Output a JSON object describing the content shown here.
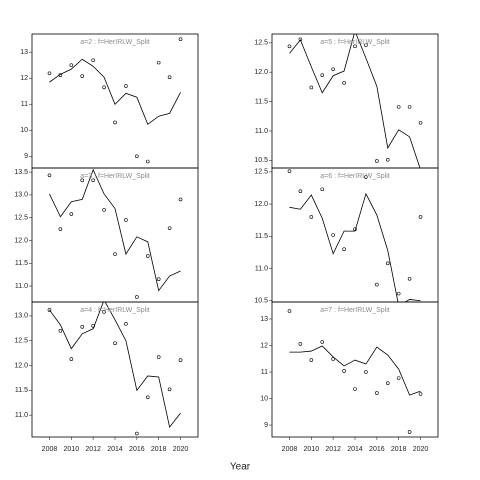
{
  "xlabel": "Year",
  "chart_data": [
    {
      "type": "scatter",
      "title": "a=2  :  f=HerIRLW_Split",
      "x": [
        2008,
        2009,
        2010,
        2011,
        2012,
        2013,
        2014,
        2015,
        2016,
        2017,
        2018,
        2019,
        2020
      ],
      "xlim": [
        2006.4,
        2021.6
      ],
      "ylim": [
        8.55,
        13.7
      ],
      "yticks": [
        9,
        10,
        11,
        12,
        13
      ],
      "series": [
        {
          "mark": "point",
          "color": "#000000",
          "values": [
            12.19,
            12.12,
            12.5,
            12.08,
            12.69,
            11.65,
            10.3,
            11.7,
            9.0,
            8.8,
            12.6,
            12.04,
            13.5
          ]
        },
        {
          "mark": "line",
          "color": "#000000",
          "values": [
            11.85,
            12.15,
            12.35,
            12.73,
            12.46,
            12.04,
            11.0,
            11.42,
            11.27,
            10.23,
            10.54,
            10.65,
            11.46
          ]
        }
      ]
    },
    {
      "type": "scatter",
      "title": "a=3  :  f=HerIRLW_Split",
      "x": [
        2008,
        2009,
        2010,
        2011,
        2012,
        2013,
        2014,
        2015,
        2016,
        2017,
        2018,
        2019,
        2020
      ],
      "xlim": [
        2006.4,
        2021.6
      ],
      "ylim": [
        10.65,
        13.59
      ],
      "yticks": [
        {
          "value": 11,
          "label": "11.0"
        },
        11.5,
        {
          "value": 12,
          "label": "12.0"
        },
        12.5,
        {
          "value": 13,
          "label": "13.0"
        },
        13.5
      ],
      "series": [
        {
          "mark": "point",
          "color": "#000000",
          "values": [
            13.43,
            12.25,
            12.58,
            13.32,
            13.32,
            12.67,
            11.7,
            12.45,
            10.76,
            11.66,
            11.15,
            12.27,
            12.9
          ]
        },
        {
          "mark": "line",
          "color": "#000000",
          "values": [
            13.02,
            12.52,
            12.85,
            12.9,
            13.55,
            13.02,
            12.7,
            11.7,
            12.08,
            11.97,
            10.9,
            11.22,
            11.33
          ]
        }
      ]
    },
    {
      "type": "scatter",
      "title": "a=4  :  f=HerIRLW_Split",
      "x": [
        2008,
        2009,
        2010,
        2011,
        2012,
        2013,
        2014,
        2015,
        2016,
        2017,
        2018,
        2019,
        2020
      ],
      "xlim": [
        2006.4,
        2021.6
      ],
      "ylim": [
        10.56,
        13.28
      ],
      "xticks": [
        2008,
        2010,
        2012,
        2014,
        2016,
        2018,
        2020
      ],
      "yticks": [
        {
          "value": 11,
          "label": "11.0"
        },
        11.5,
        {
          "value": 12,
          "label": "12.0"
        },
        12.5,
        {
          "value": 13,
          "label": "13.0"
        }
      ],
      "series": [
        {
          "mark": "point",
          "color": "#000000",
          "values": [
            13.12,
            12.7,
            12.13,
            12.78,
            12.8,
            13.08,
            12.45,
            12.84,
            10.63,
            11.36,
            12.17,
            11.52,
            12.11
          ]
        },
        {
          "mark": "line",
          "color": "#000000",
          "values": [
            13.12,
            12.82,
            12.34,
            12.64,
            12.74,
            13.32,
            12.92,
            12.5,
            11.5,
            11.79,
            11.77,
            10.76,
            11.04
          ]
        }
      ]
    },
    {
      "type": "scatter",
      "title": "a=5  :  f=HerIRLW_Split",
      "x": [
        2008,
        2009,
        2010,
        2011,
        2012,
        2013,
        2014,
        2015,
        2016,
        2017,
        2018,
        2019,
        2020
      ],
      "xlim": [
        2006.4,
        2021.6
      ],
      "ylim": [
        10.37,
        12.65
      ],
      "yticks": [
        10.5,
        {
          "value": 11,
          "label": "11.0"
        },
        11.5,
        {
          "value": 12,
          "label": "12.0"
        },
        12.5
      ],
      "series": [
        {
          "mark": "point",
          "color": "#000000",
          "values": [
            12.44,
            12.56,
            11.74,
            11.95,
            12.05,
            11.82,
            12.44,
            12.46,
            10.49,
            10.51,
            11.41,
            11.41,
            11.14
          ]
        },
        {
          "mark": "line",
          "color": "#000000",
          "values": [
            12.32,
            12.55,
            12.09,
            11.65,
            11.94,
            12.02,
            12.7,
            12.24,
            11.76,
            10.71,
            11.02,
            10.9,
            10.34
          ]
        }
      ]
    },
    {
      "type": "scatter",
      "title": "a=6  :  f=HerIRLW_Split",
      "x": [
        2008,
        2009,
        2010,
        2011,
        2012,
        2013,
        2014,
        2015,
        2016,
        2017,
        2018,
        2019,
        2020
      ],
      "xlim": [
        2006.4,
        2021.6
      ],
      "ylim": [
        10.48,
        12.56
      ],
      "yticks": [
        10.5,
        {
          "value": 11,
          "label": "11.0"
        },
        11.5,
        {
          "value": 12,
          "label": "12.0"
        },
        12.5
      ],
      "series": [
        {
          "mark": "point",
          "color": "#000000",
          "values": [
            12.51,
            12.2,
            11.8,
            12.23,
            11.52,
            11.3,
            11.61,
            12.42,
            10.75,
            11.08,
            10.61,
            10.84,
            11.8
          ]
        },
        {
          "mark": "line",
          "color": "#000000",
          "values": [
            11.95,
            11.92,
            12.14,
            11.78,
            11.23,
            11.58,
            11.58,
            12.16,
            11.83,
            11.28,
            10.42,
            10.52,
            10.5
          ]
        }
      ]
    },
    {
      "type": "scatter",
      "title": "a=7  :  f=HerIRLW_Split",
      "x": [
        2008,
        2009,
        2010,
        2011,
        2012,
        2013,
        2014,
        2015,
        2016,
        2017,
        2018,
        2019,
        2020
      ],
      "xlim": [
        2006.4,
        2021.6
      ],
      "ylim": [
        8.55,
        13.64
      ],
      "xticks": [
        2008,
        2010,
        2012,
        2014,
        2016,
        2018,
        2020
      ],
      "yticks": [
        9,
        10,
        11,
        12,
        13
      ],
      "series": [
        {
          "mark": "point",
          "color": "#000000",
          "values": [
            13.3,
            12.06,
            11.45,
            12.13,
            11.49,
            11.04,
            10.36,
            11.0,
            10.21,
            10.58,
            10.77,
            8.74,
            10.17
          ]
        },
        {
          "mark": "line",
          "color": "#000000",
          "values": [
            11.75,
            11.75,
            11.79,
            11.98,
            11.57,
            11.23,
            11.45,
            11.3,
            11.94,
            11.64,
            11.11,
            10.13,
            10.28
          ]
        }
      ]
    }
  ]
}
